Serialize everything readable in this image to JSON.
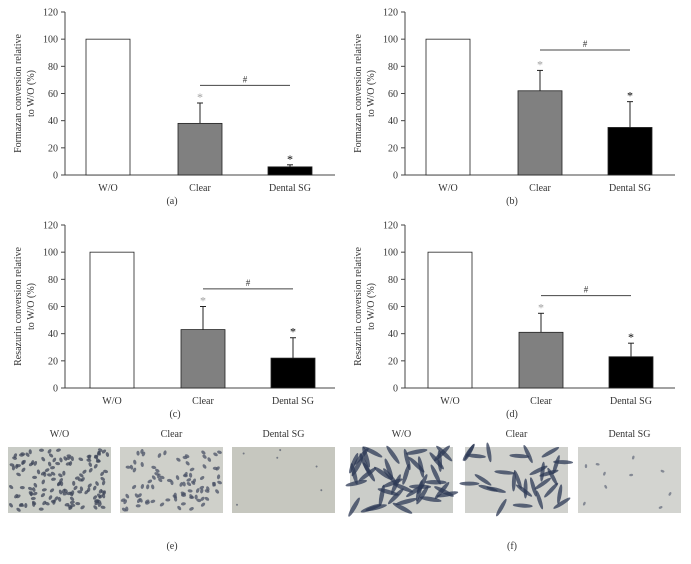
{
  "chart_data": [
    {
      "type": "bar",
      "panel": "(a)",
      "ylabel": [
        "Formazan conversion relative",
        "to W/O (%)"
      ],
      "categories": [
        "W/O",
        "Clear",
        "Dental SG"
      ],
      "values": [
        100,
        38,
        6
      ],
      "errors": [
        null,
        15,
        1.5
      ],
      "colors": [
        "#ffffff",
        "#808080",
        "#000000"
      ],
      "stars": [
        null,
        "*",
        "*"
      ],
      "star_colors": [
        null,
        "#a0a0a0",
        "#000000"
      ],
      "bracket": {
        "label": "#",
        "from": 1,
        "to": 2,
        "y": 66
      },
      "ylim": [
        0,
        120
      ],
      "yticks": [
        0,
        20,
        40,
        60,
        80,
        100,
        120
      ]
    },
    {
      "type": "bar",
      "panel": "(b)",
      "ylabel": [
        "Formazan conversion relative",
        "to W/O (%)"
      ],
      "categories": [
        "W/O",
        "Clear",
        "Dental SG"
      ],
      "values": [
        100,
        62,
        35
      ],
      "errors": [
        null,
        15,
        19
      ],
      "colors": [
        "#ffffff",
        "#808080",
        "#000000"
      ],
      "stars": [
        null,
        "*",
        "*"
      ],
      "star_colors": [
        null,
        "#a0a0a0",
        "#000000"
      ],
      "bracket": {
        "label": "#",
        "from": 1,
        "to": 2,
        "y": 92
      },
      "ylim": [
        0,
        120
      ],
      "yticks": [
        0,
        20,
        40,
        60,
        80,
        100,
        120
      ]
    },
    {
      "type": "bar",
      "panel": "(c)",
      "ylabel": [
        "Resazurin conversion relative",
        "to W/O (%)"
      ],
      "categories": [
        "W/O",
        "Clear",
        "Dental SG"
      ],
      "values": [
        100,
        43,
        22
      ],
      "errors": [
        null,
        17,
        15
      ],
      "colors": [
        "#ffffff",
        "#808080",
        "#000000"
      ],
      "stars": [
        null,
        "*",
        "*"
      ],
      "star_colors": [
        null,
        "#a0a0a0",
        "#000000"
      ],
      "bracket": {
        "label": "#",
        "from": 1,
        "to": 2,
        "y": 73
      },
      "ylim": [
        0,
        120
      ],
      "yticks": [
        0,
        20,
        40,
        60,
        80,
        100,
        120
      ]
    },
    {
      "type": "bar",
      "panel": "(d)",
      "ylabel": [
        "Resazurin conversion relative",
        "to W/O (%)"
      ],
      "categories": [
        "W/O",
        "Clear",
        "Dental SG"
      ],
      "values": [
        100,
        41,
        23
      ],
      "errors": [
        null,
        14,
        10
      ],
      "colors": [
        "#ffffff",
        "#808080",
        "#000000"
      ],
      "stars": [
        null,
        "*",
        "*"
      ],
      "star_colors": [
        null,
        "#a0a0a0",
        "#000000"
      ],
      "bracket": {
        "label": "#",
        "from": 1,
        "to": 2,
        "y": 68
      },
      "ylim": [
        0,
        120
      ],
      "yticks": [
        0,
        20,
        40,
        60,
        80,
        100,
        120
      ]
    }
  ],
  "image_panels": [
    {
      "panel": "(e)",
      "captions": [
        "W/O",
        "Clear",
        "Dental SG"
      ]
    },
    {
      "panel": "(f)",
      "captions": [
        "W/O",
        "Clear",
        "Dental SG"
      ]
    }
  ]
}
